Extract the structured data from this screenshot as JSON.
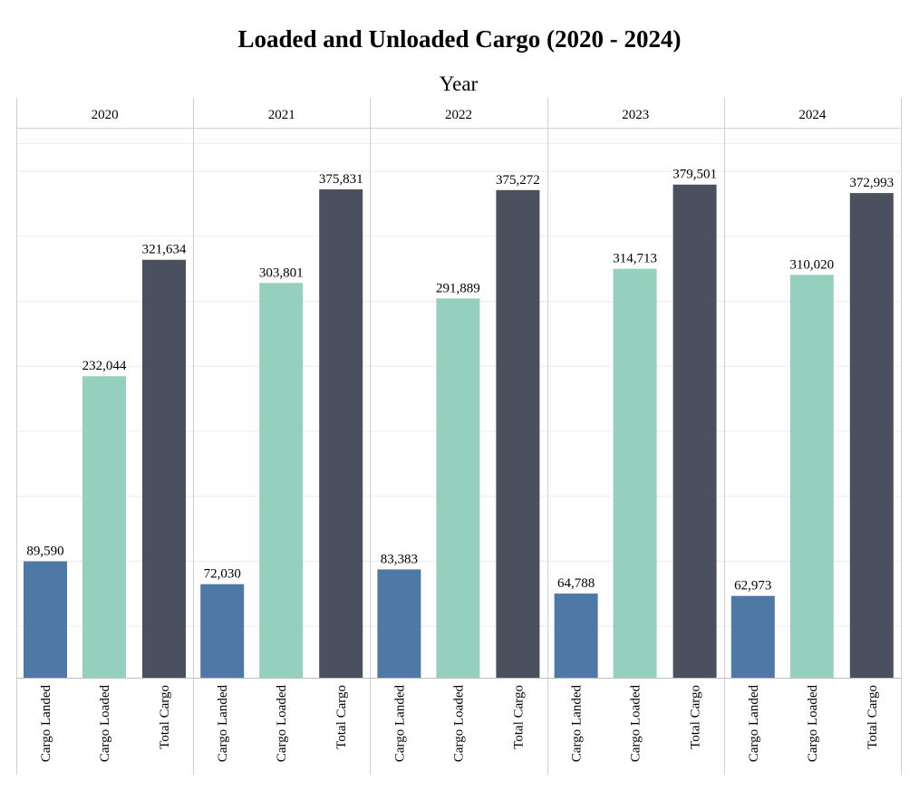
{
  "chart_data": {
    "type": "bar",
    "title": "Loaded and Unloaded Cargo (2020 - 2024)",
    "xlabel": "Year",
    "ylabel": "",
    "ylim": [
      0,
      400000
    ],
    "grid": true,
    "panels": [
      "2020",
      "2021",
      "2022",
      "2023",
      "2024"
    ],
    "categories": [
      "Cargo Landed",
      "Cargo Loaded",
      "Total Cargo"
    ],
    "colors": {
      "Cargo Landed": "#4e79a7",
      "Cargo Loaded": "#94d0bd",
      "Total Cargo": "#4a505d"
    },
    "values": [
      {
        "panel": "2020",
        "values": [
          89590,
          232044,
          321634
        ],
        "labels": [
          "89,590",
          "232,044",
          "321,634"
        ]
      },
      {
        "panel": "2021",
        "values": [
          72030,
          303801,
          375831
        ],
        "labels": [
          "72,030",
          "303,801",
          "375,831"
        ]
      },
      {
        "panel": "2022",
        "values": [
          83383,
          291889,
          375272
        ],
        "labels": [
          "83,383",
          "291,889",
          "375,272"
        ]
      },
      {
        "panel": "2023",
        "values": [
          64788,
          314713,
          379501
        ],
        "labels": [
          "64,788",
          "314,713",
          "379,501"
        ]
      },
      {
        "panel": "2024",
        "values": [
          62973,
          310020,
          372993
        ],
        "labels": [
          "62,973",
          "310,020",
          "372,993"
        ]
      }
    ]
  }
}
